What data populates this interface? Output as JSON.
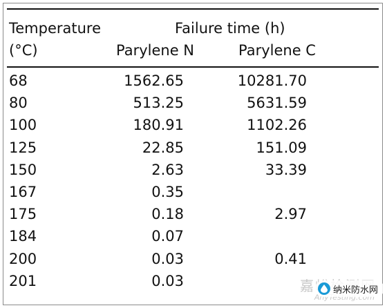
{
  "table": {
    "header": {
      "temperature": "Temperature",
      "temperature_unit": "(°C)",
      "failure_time": "Failure time (h)",
      "parylene_n": "Parylene N",
      "parylene_c": "Parylene C"
    },
    "rows": [
      {
        "temp": "68",
        "n": "1562.65",
        "c": "10281.70"
      },
      {
        "temp": "80",
        "n": "513.25",
        "c": "5631.59"
      },
      {
        "temp": "100",
        "n": "180.91",
        "c": "1102.26"
      },
      {
        "temp": "125",
        "n": "22.85",
        "c": "151.09"
      },
      {
        "temp": "150",
        "n": "2.63",
        "c": "33.39"
      },
      {
        "temp": "167",
        "n": "0.35",
        "c": ""
      },
      {
        "temp": "175",
        "n": "0.18",
        "c": "2.97"
      },
      {
        "temp": "184",
        "n": "0.07",
        "c": ""
      },
      {
        "temp": "200",
        "n": "0.03",
        "c": "0.41"
      },
      {
        "temp": "201",
        "n": "0.03",
        "c": ""
      }
    ]
  },
  "watermark": {
    "site_cn": "嘉峪检测网",
    "site_en": "AnyTesting.com",
    "badge": "纳米防水网",
    "badge_icon": "droplet-icon",
    "badge_color": "#1a9ad6"
  }
}
